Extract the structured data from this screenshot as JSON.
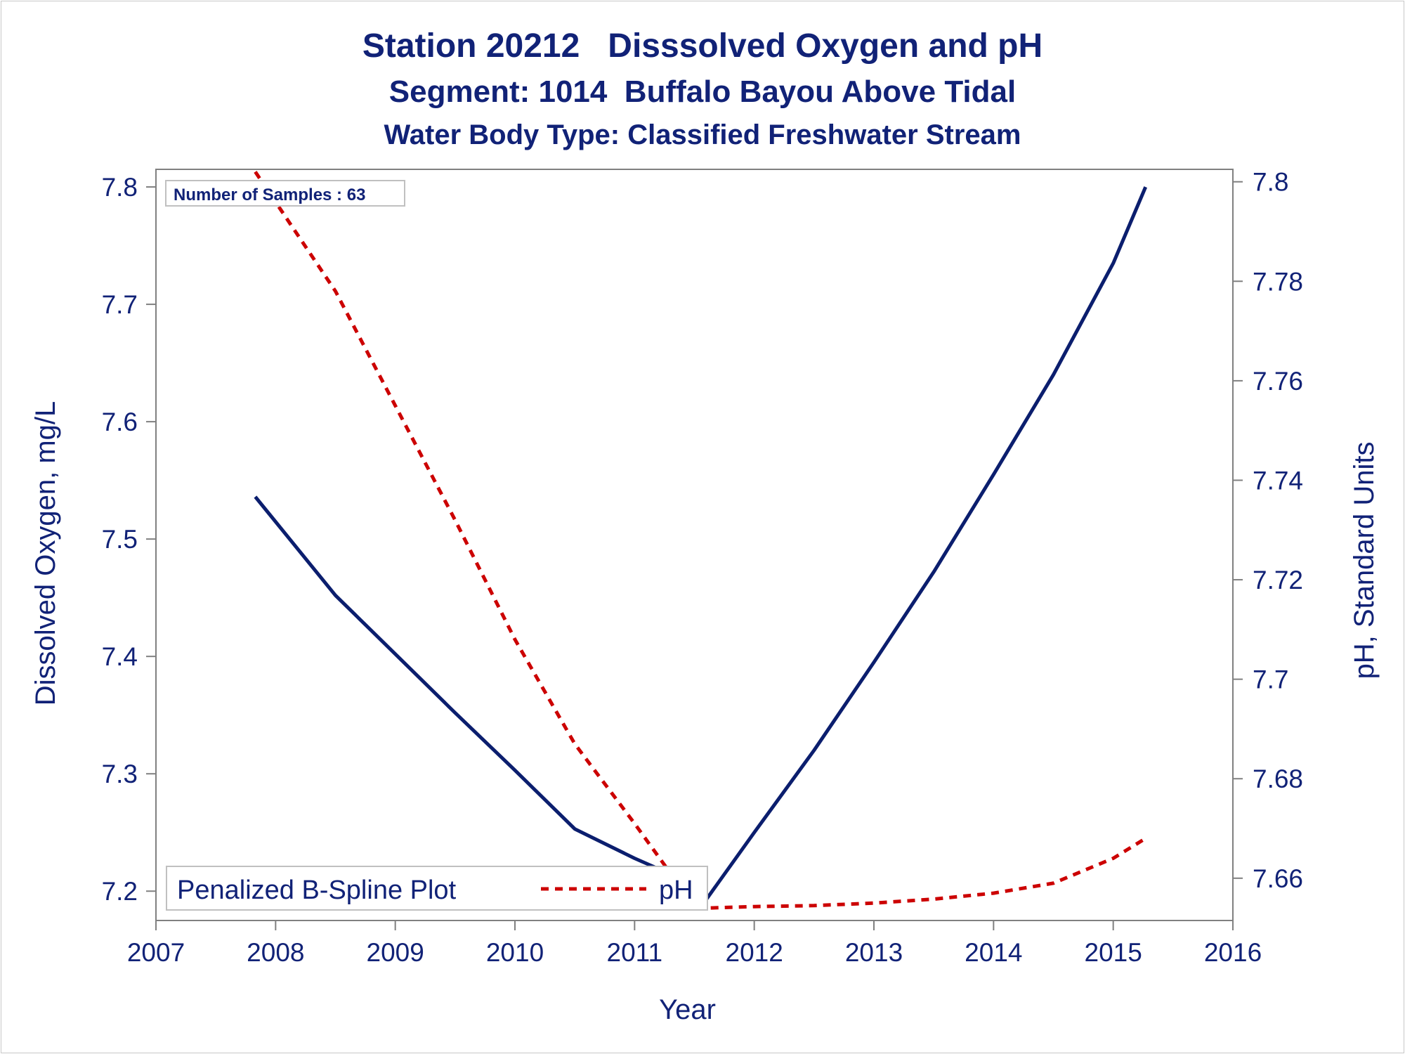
{
  "titles": {
    "line1": "Station 20212   Disssolved Oxygen and pH",
    "line2": "Segment: 1014  Buffalo Bayou Above Tidal",
    "line3": "Water Body Type: Classified Freshwater Stream"
  },
  "inset_note": "Number of Samples : 63",
  "colors": {
    "do_line": "#0b1e6e",
    "ph_line": "#cc0000",
    "text": "#112277",
    "axis": "#808080"
  },
  "chart_data": {
    "type": "line",
    "xlabel": "Year",
    "ylabel_left": "Dissolved Oxygen, mg/L",
    "ylabel_right": "pH, Standard Units",
    "xlim": [
      2007,
      2016
    ],
    "ylim_left": [
      7.175,
      7.815
    ],
    "ylim_right": [
      7.6515,
      7.8025
    ],
    "x_ticks": [
      2007,
      2008,
      2009,
      2010,
      2011,
      2012,
      2013,
      2014,
      2015,
      2016
    ],
    "y_ticks_left": [
      "7.2",
      "7.3",
      "7.4",
      "7.5",
      "7.6",
      "7.7",
      "7.8"
    ],
    "y_ticks_right": [
      "7.66",
      "7.68",
      "7.7",
      "7.72",
      "7.74",
      "7.76",
      "7.78",
      "7.8"
    ],
    "grid": false,
    "legend_position": "bottom-left",
    "legend_title": "Penalized B-Spline Plot",
    "series": [
      {
        "axis": "left",
        "style": "solid",
        "x": [
          2007.83,
          2008.5,
          2009.0,
          2009.5,
          2010.0,
          2010.5,
          2011.0,
          2011.4,
          2011.6,
          2012.0,
          2012.5,
          2013.0,
          2013.5,
          2014.0,
          2014.5,
          2015.0,
          2015.27
        ],
        "y": [
          7.536,
          7.452,
          7.402,
          7.352,
          7.303,
          7.253,
          7.228,
          7.21,
          7.193,
          7.25,
          7.32,
          7.395,
          7.472,
          7.555,
          7.64,
          7.735,
          7.8
        ]
      },
      {
        "name": "pH",
        "axis": "right",
        "style": "dashed",
        "x": [
          2007.83,
          2008.5,
          2009.0,
          2009.5,
          2010.0,
          2010.5,
          2011.0,
          2011.3,
          2011.6,
          2012.0,
          2012.5,
          2013.0,
          2013.5,
          2014.0,
          2014.5,
          2015.0,
          2015.27
        ],
        "y": [
          7.802,
          7.778,
          7.755,
          7.732,
          7.708,
          7.687,
          7.671,
          7.661,
          7.654,
          7.6543,
          7.6545,
          7.655,
          7.6558,
          7.657,
          7.659,
          7.664,
          7.668
        ]
      }
    ]
  }
}
